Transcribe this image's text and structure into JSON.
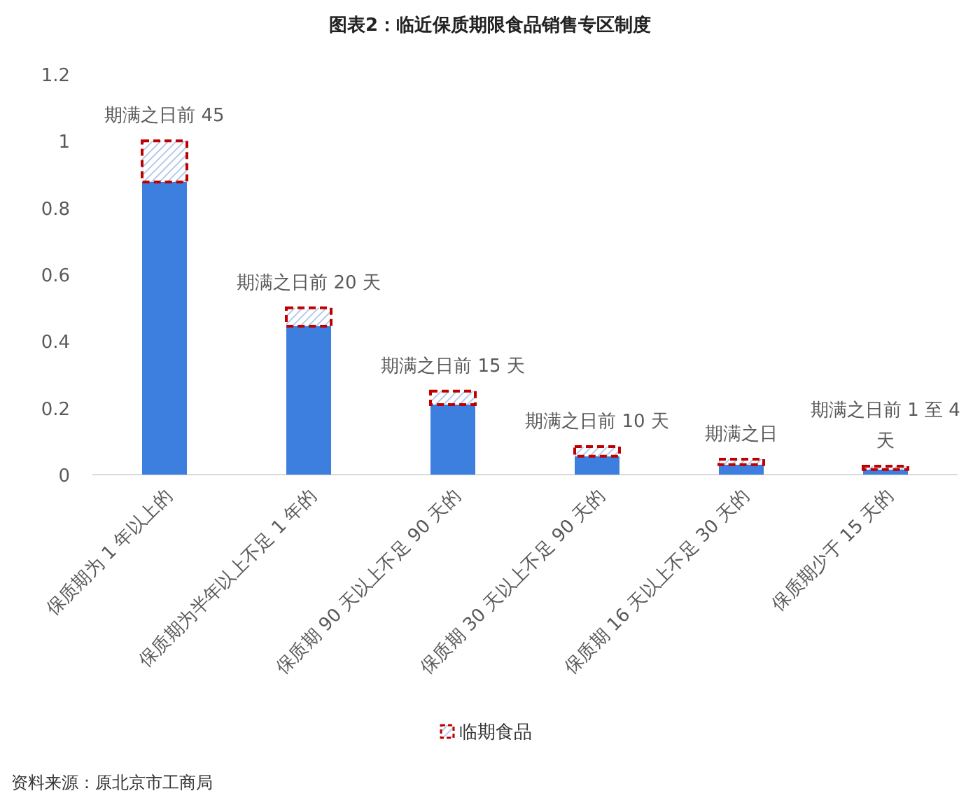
{
  "chart_data": {
    "type": "bar",
    "title": "图表2：临近保质期限食品销售专区制度",
    "stacked": true,
    "categories": [
      "保质期为 1 年以上的",
      "保质期为半年以上不足 1 年的",
      "保质期 90 天以上不足 90 天的",
      "保质期 30 天以上不足 90 天的",
      "保质期 16 天以上不足 30 天的",
      "保质期少于 15 天的"
    ],
    "series": [
      {
        "color": "#3c7fdf",
        "values": [
          0.877,
          0.445,
          0.21,
          0.055,
          0.03,
          0.015
        ]
      },
      {
        "name": "临期食品",
        "color": "#c00000",
        "values": [
          0.123,
          0.055,
          0.04,
          0.029,
          0.016,
          0.01
        ],
        "value_labels": [
          "期满之日前 45",
          "期满之日前 20 天",
          "期满之日前 15 天",
          "期满之日前 10 天",
          "期满之日",
          "期满之日前 1 至 4 天"
        ]
      }
    ],
    "ylim": [
      0,
      1.2
    ],
    "yticks": [
      0,
      0.2,
      0.4,
      0.6,
      0.8,
      1,
      1.2
    ],
    "grid": false,
    "legend": "bottom",
    "annotations": [
      "资料来源：原北京市工商局"
    ]
  }
}
